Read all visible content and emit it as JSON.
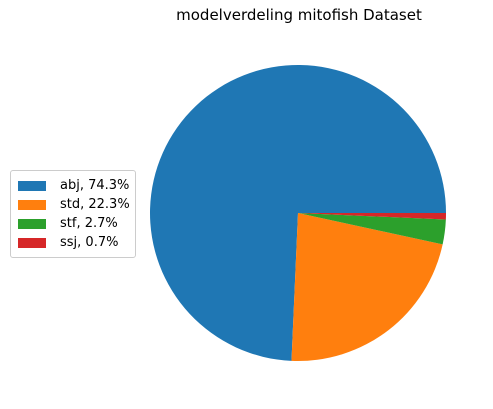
{
  "chart_data": {
    "type": "pie",
    "title": "modelverdeling mitofish Dataset",
    "slices": [
      {
        "label": "abj",
        "value": 74.3,
        "color": "#1f77b4"
      },
      {
        "label": "std",
        "value": 22.3,
        "color": "#ff7f0e"
      },
      {
        "label": "stf",
        "value": 2.7,
        "color": "#2ca02c"
      },
      {
        "label": "ssj",
        "value": 0.7,
        "color": "#d62728"
      }
    ],
    "legend": {
      "placement": "left",
      "entries": [
        "abj, 74.3%",
        "std, 22.3%",
        "stf, 2.7%",
        "ssj, 0.7%"
      ]
    },
    "start_angle_deg": 0,
    "direction": "counterclockwise"
  }
}
